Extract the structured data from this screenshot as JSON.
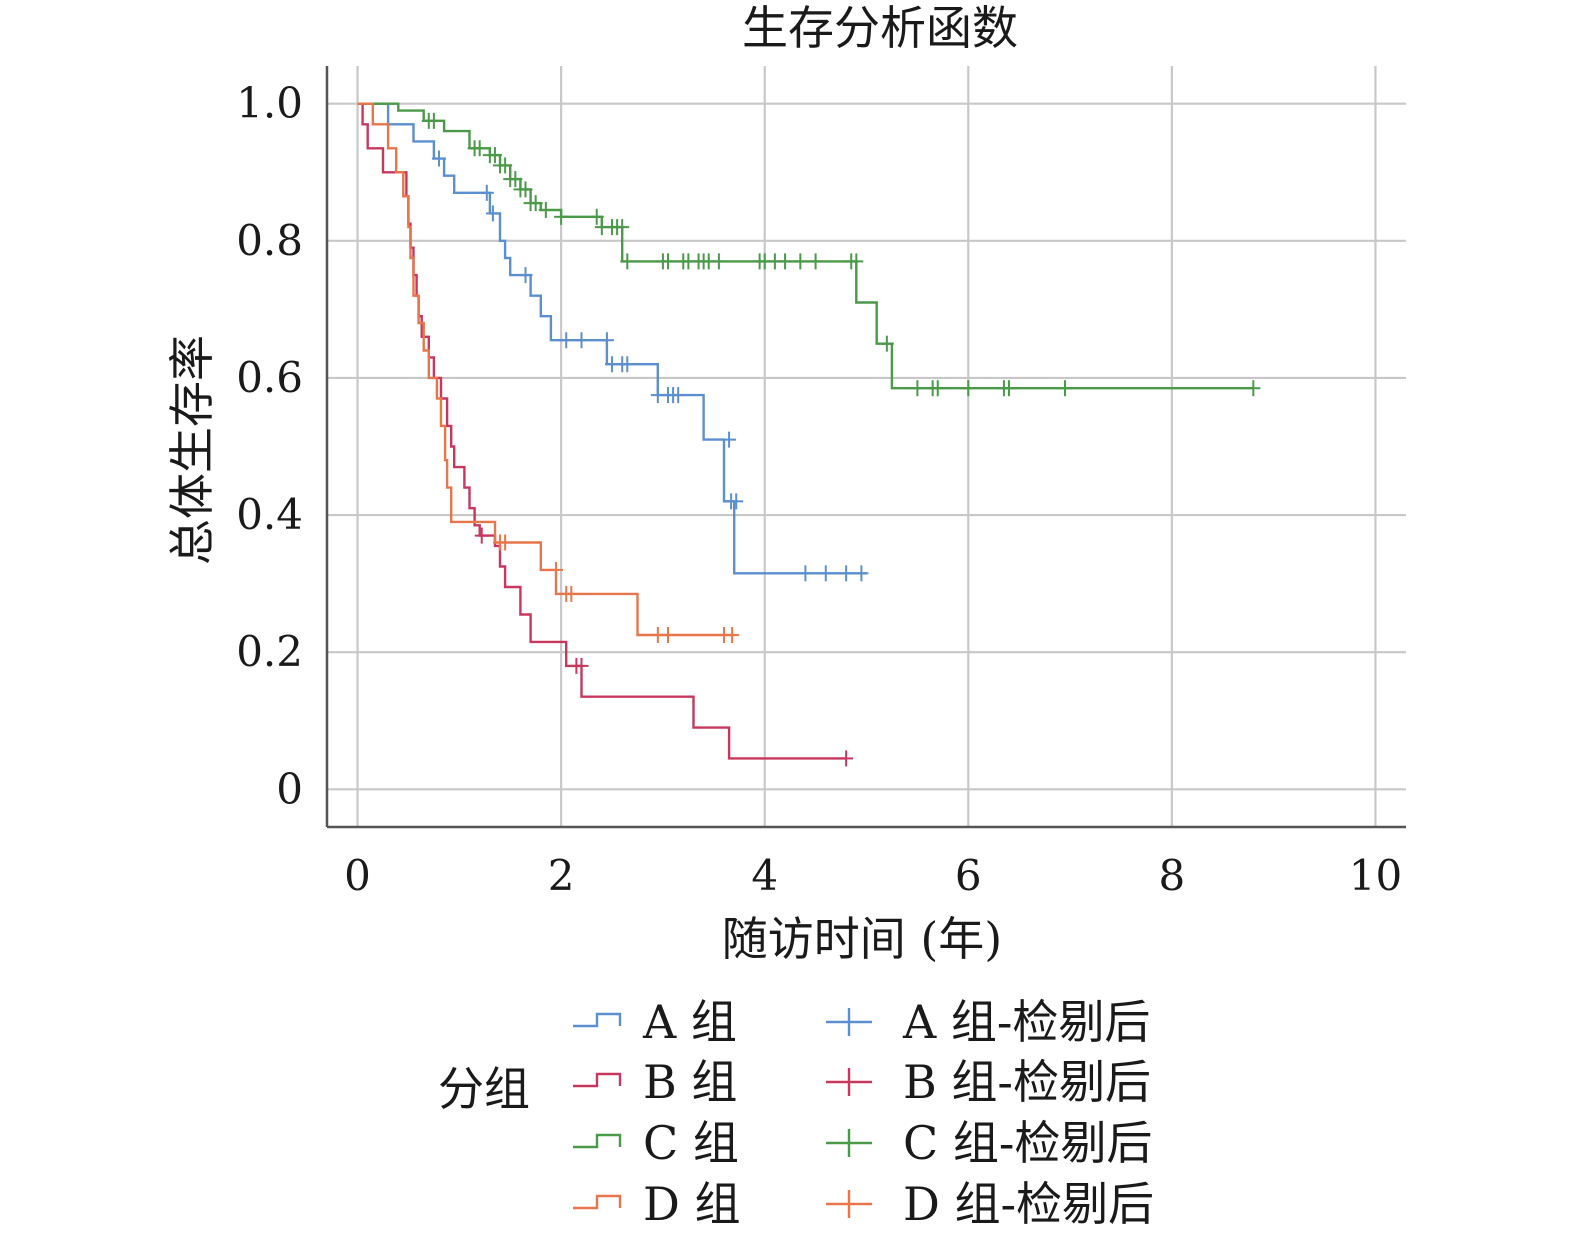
{
  "chart_data": {
    "type": "line",
    "subtype": "kaplan-meier-step",
    "title": "生存分析函数",
    "xlabel": "随访时间 (年)",
    "ylabel": "总体生存率",
    "xlim": [
      -0.3,
      10.3
    ],
    "ylim": [
      -0.055,
      1.055
    ],
    "xticks": [
      0,
      2,
      4,
      6,
      8,
      10
    ],
    "xtick_labels": [
      "0",
      "2",
      "4",
      "6",
      "8",
      "10"
    ],
    "yticks": [
      0,
      0.2,
      0.4,
      0.6,
      0.8,
      1.0
    ],
    "ytick_labels": [
      "0",
      "0.2",
      "0.4",
      "0.6",
      "0.8",
      "1.0"
    ],
    "grid": true,
    "legend": {
      "title": "分组",
      "position": "bottom",
      "line_entries": [
        "A 组",
        "B 组",
        "C 组",
        "D 组"
      ],
      "censor_entries": [
        "A 组-检剔后",
        "B 组-检剔后",
        "C 组-检剔后",
        "D 组-检剔后"
      ]
    },
    "series": [
      {
        "name": "A 组",
        "color": "#5b8fcf",
        "steps": [
          [
            0,
            1.0
          ],
          [
            0.3,
            0.97
          ],
          [
            0.55,
            0.945
          ],
          [
            0.75,
            0.92
          ],
          [
            0.85,
            0.895
          ],
          [
            0.95,
            0.87
          ],
          [
            1.15,
            0.87
          ],
          [
            1.3,
            0.84
          ],
          [
            1.4,
            0.8
          ],
          [
            1.45,
            0.775
          ],
          [
            1.5,
            0.75
          ],
          [
            1.7,
            0.72
          ],
          [
            1.8,
            0.69
          ],
          [
            1.9,
            0.655
          ],
          [
            2.45,
            0.62
          ],
          [
            2.95,
            0.575
          ],
          [
            3.4,
            0.51
          ],
          [
            3.6,
            0.42
          ],
          [
            3.7,
            0.315
          ],
          [
            5.0,
            0.315
          ]
        ],
        "censored": [
          [
            0.8,
            0.92
          ],
          [
            1.27,
            0.87
          ],
          [
            1.33,
            0.84
          ],
          [
            1.65,
            0.75
          ],
          [
            2.05,
            0.655
          ],
          [
            2.2,
            0.655
          ],
          [
            2.45,
            0.655
          ],
          [
            2.5,
            0.62
          ],
          [
            2.6,
            0.62
          ],
          [
            2.65,
            0.62
          ],
          [
            2.95,
            0.575
          ],
          [
            3.05,
            0.575
          ],
          [
            3.1,
            0.575
          ],
          [
            3.15,
            0.575
          ],
          [
            3.65,
            0.51
          ],
          [
            3.67,
            0.42
          ],
          [
            3.72,
            0.42
          ],
          [
            4.4,
            0.315
          ],
          [
            4.6,
            0.315
          ],
          [
            4.8,
            0.315
          ],
          [
            4.95,
            0.315
          ]
        ]
      },
      {
        "name": "B 组",
        "color": "#c8385e",
        "steps": [
          [
            0,
            1.0
          ],
          [
            0.05,
            0.97
          ],
          [
            0.1,
            0.935
          ],
          [
            0.25,
            0.9
          ],
          [
            0.48,
            0.865
          ],
          [
            0.5,
            0.825
          ],
          [
            0.52,
            0.79
          ],
          [
            0.55,
            0.75
          ],
          [
            0.58,
            0.72
          ],
          [
            0.6,
            0.69
          ],
          [
            0.63,
            0.66
          ],
          [
            0.7,
            0.63
          ],
          [
            0.75,
            0.6
          ],
          [
            0.82,
            0.57
          ],
          [
            0.88,
            0.53
          ],
          [
            0.92,
            0.5
          ],
          [
            0.95,
            0.47
          ],
          [
            1.05,
            0.44
          ],
          [
            1.1,
            0.41
          ],
          [
            1.15,
            0.385
          ],
          [
            1.2,
            0.37
          ],
          [
            1.35,
            0.355
          ],
          [
            1.4,
            0.325
          ],
          [
            1.45,
            0.295
          ],
          [
            1.6,
            0.255
          ],
          [
            1.7,
            0.215
          ],
          [
            2.05,
            0.18
          ],
          [
            2.2,
            0.135
          ],
          [
            3.3,
            0.09
          ],
          [
            3.65,
            0.045
          ],
          [
            4.8,
            0.045
          ]
        ],
        "censored": [
          [
            1.22,
            0.37
          ],
          [
            2.15,
            0.18
          ],
          [
            2.2,
            0.18
          ],
          [
            4.8,
            0.045
          ]
        ]
      },
      {
        "name": "C 组",
        "color": "#4a9a4a",
        "steps": [
          [
            0,
            1.0
          ],
          [
            0.4,
            0.99
          ],
          [
            0.65,
            0.975
          ],
          [
            0.85,
            0.96
          ],
          [
            1.1,
            0.935
          ],
          [
            1.3,
            0.925
          ],
          [
            1.4,
            0.91
          ],
          [
            1.5,
            0.89
          ],
          [
            1.6,
            0.875
          ],
          [
            1.7,
            0.855
          ],
          [
            1.8,
            0.845
          ],
          [
            2.0,
            0.835
          ],
          [
            2.4,
            0.82
          ],
          [
            2.6,
            0.77
          ],
          [
            4.9,
            0.71
          ],
          [
            5.1,
            0.65
          ],
          [
            5.25,
            0.585
          ],
          [
            8.8,
            0.585
          ]
        ],
        "censored": [
          [
            0.7,
            0.975
          ],
          [
            0.75,
            0.975
          ],
          [
            1.15,
            0.935
          ],
          [
            1.2,
            0.935
          ],
          [
            1.3,
            0.925
          ],
          [
            1.35,
            0.925
          ],
          [
            1.4,
            0.91
          ],
          [
            1.45,
            0.91
          ],
          [
            1.5,
            0.89
          ],
          [
            1.55,
            0.89
          ],
          [
            1.6,
            0.875
          ],
          [
            1.65,
            0.875
          ],
          [
            1.7,
            0.855
          ],
          [
            1.75,
            0.855
          ],
          [
            1.85,
            0.845
          ],
          [
            2.0,
            0.835
          ],
          [
            2.35,
            0.835
          ],
          [
            2.4,
            0.82
          ],
          [
            2.5,
            0.82
          ],
          [
            2.55,
            0.82
          ],
          [
            2.6,
            0.82
          ],
          [
            2.65,
            0.77
          ],
          [
            3.0,
            0.77
          ],
          [
            3.05,
            0.77
          ],
          [
            3.2,
            0.77
          ],
          [
            3.25,
            0.77
          ],
          [
            3.35,
            0.77
          ],
          [
            3.4,
            0.77
          ],
          [
            3.45,
            0.77
          ],
          [
            3.55,
            0.77
          ],
          [
            3.95,
            0.77
          ],
          [
            4.0,
            0.77
          ],
          [
            4.1,
            0.77
          ],
          [
            4.2,
            0.77
          ],
          [
            4.35,
            0.77
          ],
          [
            4.5,
            0.77
          ],
          [
            4.85,
            0.77
          ],
          [
            4.9,
            0.77
          ],
          [
            5.2,
            0.65
          ],
          [
            5.5,
            0.585
          ],
          [
            5.65,
            0.585
          ],
          [
            5.7,
            0.585
          ],
          [
            6.0,
            0.585
          ],
          [
            6.35,
            0.585
          ],
          [
            6.4,
            0.585
          ],
          [
            6.95,
            0.585
          ],
          [
            8.8,
            0.585
          ]
        ]
      },
      {
        "name": "D 组",
        "color": "#e8764a",
        "steps": [
          [
            0,
            1.0
          ],
          [
            0.15,
            0.97
          ],
          [
            0.3,
            0.935
          ],
          [
            0.38,
            0.9
          ],
          [
            0.45,
            0.865
          ],
          [
            0.5,
            0.82
          ],
          [
            0.52,
            0.775
          ],
          [
            0.55,
            0.72
          ],
          [
            0.6,
            0.68
          ],
          [
            0.65,
            0.64
          ],
          [
            0.7,
            0.6
          ],
          [
            0.78,
            0.57
          ],
          [
            0.82,
            0.53
          ],
          [
            0.86,
            0.48
          ],
          [
            0.88,
            0.44
          ],
          [
            0.92,
            0.39
          ],
          [
            1.35,
            0.36
          ],
          [
            1.8,
            0.32
          ],
          [
            1.95,
            0.285
          ],
          [
            2.75,
            0.225
          ],
          [
            3.7,
            0.225
          ]
        ],
        "censored": [
          [
            1.4,
            0.36
          ],
          [
            1.45,
            0.36
          ],
          [
            1.95,
            0.32
          ],
          [
            2.05,
            0.285
          ],
          [
            2.1,
            0.285
          ],
          [
            2.95,
            0.225
          ],
          [
            3.05,
            0.225
          ],
          [
            3.6,
            0.225
          ],
          [
            3.68,
            0.225
          ]
        ]
      }
    ]
  }
}
